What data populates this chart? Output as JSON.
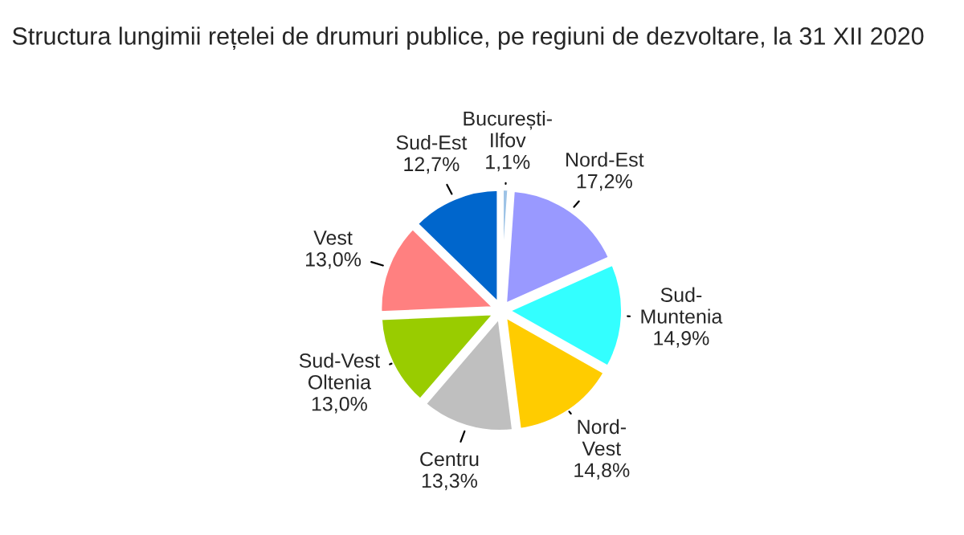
{
  "chart_data": {
    "type": "pie",
    "title": "Structura lungimii rețelei de drumuri publice, pe regiuni de dezvoltare, la 31 XII 2020",
    "categories": [
      "București-Ilfov",
      "Nord-Est",
      "Sud-Muntenia",
      "Nord-Vest",
      "Centru",
      "Sud-Vest Oltenia",
      "Vest",
      "Sud-Est"
    ],
    "values": [
      1.1,
      17.2,
      14.9,
      14.8,
      13.3,
      13.0,
      13.0,
      12.7
    ],
    "value_labels": [
      "1,1%",
      "17,2%",
      "14,9%",
      "14,8%",
      "13,3%",
      "13,0%",
      "13,0%",
      "12,7%"
    ],
    "colors": [
      "#9dc3e6",
      "#9999ff",
      "#33ffff",
      "#ffcc00",
      "#bfbfbf",
      "#99cc00",
      "#ff8080",
      "#0066cc"
    ],
    "legend": false
  }
}
